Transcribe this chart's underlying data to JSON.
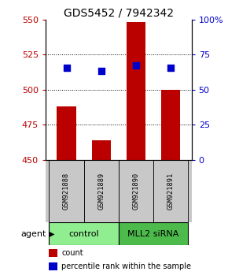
{
  "title": "GDS5452 / 7942342",
  "samples": [
    "GSM921888",
    "GSM921889",
    "GSM921890",
    "GSM921891"
  ],
  "bar_values": [
    488,
    464,
    548,
    500
  ],
  "bar_base": 450,
  "percentile_values": [
    515.5,
    513.5,
    517.0,
    515.5
  ],
  "ylim": [
    450,
    550
  ],
  "yticks_left": [
    450,
    475,
    500,
    525,
    550
  ],
  "yticks_right": [
    0,
    25,
    50,
    75,
    100
  ],
  "bar_color": "#BB0000",
  "dot_color": "#0000CC",
  "groups": [
    {
      "label": "control",
      "samples": [
        0,
        1
      ],
      "color": "#90EE90"
    },
    {
      "label": "MLL2 siRNA",
      "samples": [
        2,
        3
      ],
      "color": "#4CBB4C"
    }
  ],
  "agent_label": "agent",
  "legend_bar_label": "count",
  "legend_dot_label": "percentile rank within the sample",
  "background_color": "#ffffff",
  "plot_bg": "#ffffff",
  "sample_box_color": "#C8C8C8"
}
